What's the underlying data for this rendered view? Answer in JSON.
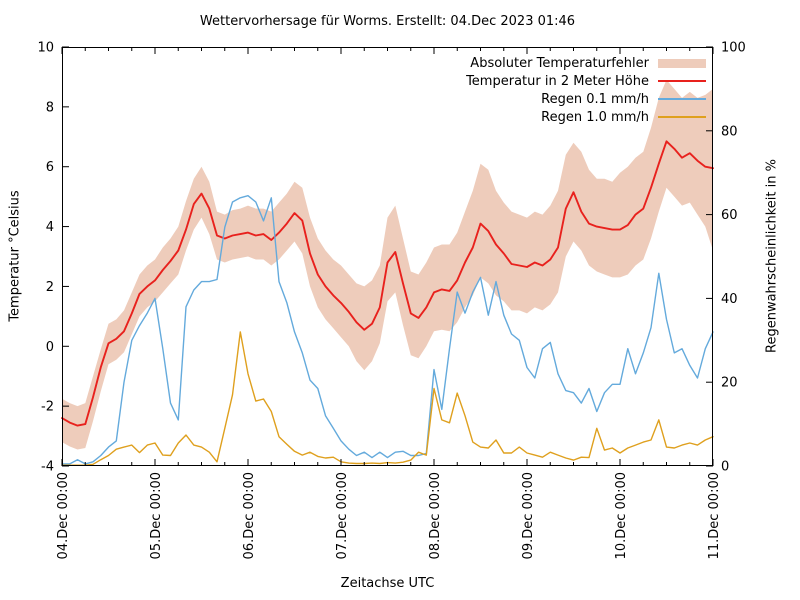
{
  "chart_data": {
    "type": "line",
    "title": "Wettervorhersage für Worms. Erstellt: 04.Dec 2023 01:46",
    "xlabel": "Zeitachse UTC",
    "ylabel_left": "Temperatur °Celsius",
    "ylabel_right": "Regenwahrscheinlichkeit in %",
    "ylim_left": [
      -4,
      10
    ],
    "yticks_left": [
      10,
      8,
      6,
      4,
      2,
      0,
      -2,
      -4
    ],
    "ylim_right": [
      0,
      100
    ],
    "yticks_right": [
      100,
      80,
      60,
      40,
      20,
      0
    ],
    "x_tick_labels": [
      "04.Dec 00:00",
      "05.Dec 00:00",
      "06.Dec 00:00",
      "07.Dec 00:00",
      "08.Dec 00:00",
      "09.Dec 00:00",
      "10.Dec 00:00",
      "11.Dec 00:00"
    ],
    "x_range_hours": [
      0,
      168
    ],
    "x_major_every_hours": 24,
    "x_minor_every_hours": 6,
    "x_step_hours": 2,
    "grid": false,
    "legend_position": "top-right-inside",
    "series": [
      {
        "name": "Absoluter Temperaturfehler",
        "axis": "left",
        "style": "band",
        "color": "#eeccbb",
        "lower": [
          -3.2,
          -3.35,
          -3.45,
          -3.4,
          -2.5,
          -1.5,
          -0.6,
          -0.45,
          -0.2,
          0.4,
          1.0,
          1.3,
          1.5,
          1.8,
          2.1,
          2.4,
          3.2,
          3.9,
          4.3,
          3.75,
          2.9,
          2.8,
          2.9,
          2.95,
          3.0,
          2.9,
          2.9,
          2.7,
          2.9,
          3.2,
          3.5,
          3.1,
          2.0,
          1.3,
          0.9,
          0.6,
          0.3,
          0.0,
          -0.5,
          -0.8,
          -0.5,
          0.1,
          1.5,
          1.8,
          0.7,
          -0.3,
          -0.4,
          0.0,
          0.5,
          0.55,
          0.5,
          0.8,
          1.3,
          1.7,
          2.3,
          2.1,
          1.7,
          1.5,
          1.2,
          1.2,
          1.1,
          1.3,
          1.2,
          1.4,
          1.8,
          3.0,
          3.5,
          3.2,
          2.7,
          2.5,
          2.4,
          2.3,
          2.3,
          2.4,
          2.7,
          2.9,
          3.6,
          4.5,
          5.3,
          5.0,
          4.7,
          4.8,
          4.4,
          4.0,
          3.2
        ],
        "upper": [
          -1.75,
          -1.9,
          -2.0,
          -1.9,
          -1.0,
          -0.1,
          0.75,
          0.9,
          1.2,
          1.8,
          2.4,
          2.7,
          2.9,
          3.3,
          3.6,
          4.0,
          4.85,
          5.6,
          6.0,
          5.5,
          4.5,
          4.4,
          4.55,
          4.6,
          4.7,
          4.6,
          4.6,
          4.5,
          4.8,
          5.1,
          5.5,
          5.3,
          4.3,
          3.6,
          3.2,
          2.9,
          2.7,
          2.4,
          2.1,
          2.0,
          2.2,
          2.7,
          4.3,
          4.7,
          3.6,
          2.5,
          2.4,
          2.8,
          3.3,
          3.4,
          3.4,
          3.8,
          4.5,
          5.2,
          6.1,
          5.9,
          5.2,
          4.8,
          4.5,
          4.4,
          4.3,
          4.5,
          4.4,
          4.7,
          5.2,
          6.4,
          6.8,
          6.5,
          5.9,
          5.6,
          5.6,
          5.5,
          5.8,
          6.0,
          6.3,
          6.5,
          7.3,
          8.3,
          8.9,
          8.6,
          8.3,
          8.5,
          8.3,
          8.4,
          8.6
        ]
      },
      {
        "name": "Temperatur in 2 Meter Höhe",
        "axis": "left",
        "style": "line",
        "color": "#e8211d",
        "values": [
          -2.4,
          -2.55,
          -2.65,
          -2.6,
          -1.7,
          -0.7,
          0.1,
          0.25,
          0.5,
          1.1,
          1.75,
          2.0,
          2.2,
          2.55,
          2.85,
          3.2,
          3.9,
          4.75,
          5.1,
          4.6,
          3.7,
          3.6,
          3.7,
          3.75,
          3.8,
          3.7,
          3.75,
          3.55,
          3.8,
          4.1,
          4.45,
          4.2,
          3.1,
          2.4,
          2.0,
          1.7,
          1.45,
          1.15,
          0.8,
          0.55,
          0.75,
          1.3,
          2.8,
          3.15,
          2.1,
          1.1,
          0.95,
          1.3,
          1.8,
          1.9,
          1.85,
          2.2,
          2.8,
          3.3,
          4.1,
          3.85,
          3.4,
          3.1,
          2.75,
          2.7,
          2.65,
          2.8,
          2.7,
          2.9,
          3.3,
          4.6,
          5.15,
          4.5,
          4.1,
          4.0,
          3.95,
          3.9,
          3.9,
          4.05,
          4.4,
          4.6,
          5.3,
          6.1,
          6.85,
          6.6,
          6.3,
          6.45,
          6.2,
          6.0,
          5.95
        ]
      },
      {
        "name": "Regen 0.1 mm/h",
        "axis": "right",
        "style": "line",
        "color": "#64aadc",
        "values": [
          0.5,
          0.5,
          1.5,
          0.5,
          1,
          2.5,
          4.5,
          6,
          20,
          30,
          33.5,
          36.5,
          40,
          28,
          15,
          11,
          38,
          42,
          44,
          44,
          44.5,
          57,
          63,
          64,
          64.5,
          63,
          58.5,
          64,
          44,
          39,
          32,
          27,
          20.5,
          18.5,
          12,
          9,
          6,
          4,
          2.5,
          3.3,
          2,
          3.3,
          2,
          3.3,
          3.5,
          2.5,
          2.5,
          3,
          23,
          13.5,
          28,
          41.5,
          36.5,
          41.5,
          45,
          36,
          44,
          36,
          31.5,
          30,
          23.5,
          21,
          28,
          29.5,
          22,
          18,
          17.5,
          15,
          18.5,
          13,
          17.5,
          19.5,
          19.5,
          28,
          22,
          27,
          33,
          46,
          35,
          27,
          28,
          24,
          21,
          28,
          32
        ]
      },
      {
        "name": "Regen 1.0 mm/h",
        "axis": "right",
        "style": "line",
        "color": "#dfa01e",
        "values": [
          0.2,
          0.2,
          0.2,
          0.2,
          0.4,
          1.5,
          2.5,
          4,
          4.5,
          5,
          3.2,
          5,
          5.5,
          2.6,
          2.5,
          5.5,
          7.4,
          5,
          4.5,
          3.3,
          1,
          9,
          17,
          32,
          22,
          15.5,
          16,
          13,
          7,
          5.2,
          3.5,
          2.6,
          3.3,
          2.3,
          1.9,
          2.1,
          1,
          0.7,
          0.6,
          0.6,
          0.7,
          0.6,
          0.8,
          0.7,
          0.9,
          1.4,
          3.3,
          2.6,
          18.5,
          11,
          10.3,
          17.4,
          12,
          5.7,
          4.5,
          4.3,
          6.2,
          3.1,
          3.1,
          4.5,
          3.1,
          2.6,
          2.1,
          3.3,
          2.6,
          1.9,
          1.4,
          2.1,
          2,
          9,
          3.8,
          4.3,
          3.1,
          4.3,
          5,
          5.7,
          6.2,
          11,
          4.5,
          4.3,
          5,
          5.5,
          5,
          6.2,
          7
        ]
      }
    ]
  }
}
